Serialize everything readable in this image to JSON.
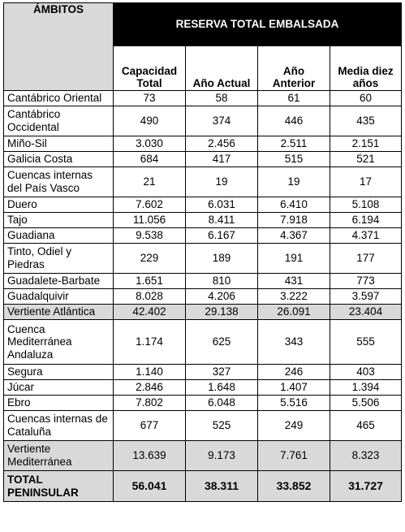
{
  "table": {
    "band_header": "RESERVA TOTAL EMBALSADA",
    "ambitos_header": "ÁMBITOS",
    "columns": [
      "Capacidad Total",
      "Año Actual",
      "Año Anterior",
      "Media diez años"
    ],
    "rows": [
      {
        "name": "Cantábrico Oriental",
        "values": [
          "73",
          "58",
          "61",
          "60"
        ]
      },
      {
        "name": "Cantábrico Occidental",
        "values": [
          "490",
          "374",
          "446",
          "435"
        ]
      },
      {
        "name": "Miño-Sil",
        "values": [
          "3.030",
          "2.456",
          "2.511",
          "2.151"
        ]
      },
      {
        "name": "Galicia Costa",
        "values": [
          "684",
          "417",
          "515",
          "521"
        ]
      },
      {
        "name": "Cuencas internas del País Vasco",
        "values": [
          "21",
          "19",
          "19",
          "17"
        ]
      },
      {
        "name": "Duero",
        "values": [
          "7.602",
          "6.031",
          "6.410",
          "5.108"
        ]
      },
      {
        "name": "Tajo",
        "values": [
          "11.056",
          "8.411",
          "7.918",
          "6.194"
        ]
      },
      {
        "name": "Guadiana",
        "values": [
          "9.538",
          "6.167",
          "4.367",
          "4.371"
        ]
      },
      {
        "name": "Tinto, Odiel y Piedras",
        "values": [
          "229",
          "189",
          "191",
          "177"
        ]
      },
      {
        "name": "Guadalete-Barbate",
        "values": [
          "1.651",
          "810",
          "431",
          "773"
        ]
      },
      {
        "name": "Guadalquivir",
        "values": [
          "8.028",
          "4.206",
          "3.222",
          "3.597"
        ]
      },
      {
        "name": "Vertiente Atlántica",
        "values": [
          "42.402",
          "29.138",
          "26.091",
          "23.404"
        ]
      },
      {
        "name": "Cuenca Mediterránea Andaluza",
        "values": [
          "1.174",
          "625",
          "343",
          "555"
        ]
      },
      {
        "name": "Segura",
        "values": [
          "1.140",
          "327",
          "246",
          "403"
        ]
      },
      {
        "name": "Júcar",
        "values": [
          "2.846",
          "1.648",
          "1.407",
          "1.394"
        ]
      },
      {
        "name": "Ebro",
        "values": [
          "7.802",
          "6.048",
          "5.516",
          "5.506"
        ]
      },
      {
        "name": "Cuencas internas de Cataluña",
        "values": [
          "677",
          "525",
          "249",
          "465"
        ]
      },
      {
        "name": "Vertiente Mediterránea",
        "values": [
          "13.639",
          "9.173",
          "7.761",
          "8.323"
        ]
      },
      {
        "name": "TOTAL PENINSULAR",
        "values": [
          "56.041",
          "38.311",
          "33.852",
          "31.727"
        ]
      }
    ]
  },
  "colors": {
    "header_band": "#000000",
    "header_band_text": "#ffffff",
    "shaded_row": "#d9d9d9"
  }
}
